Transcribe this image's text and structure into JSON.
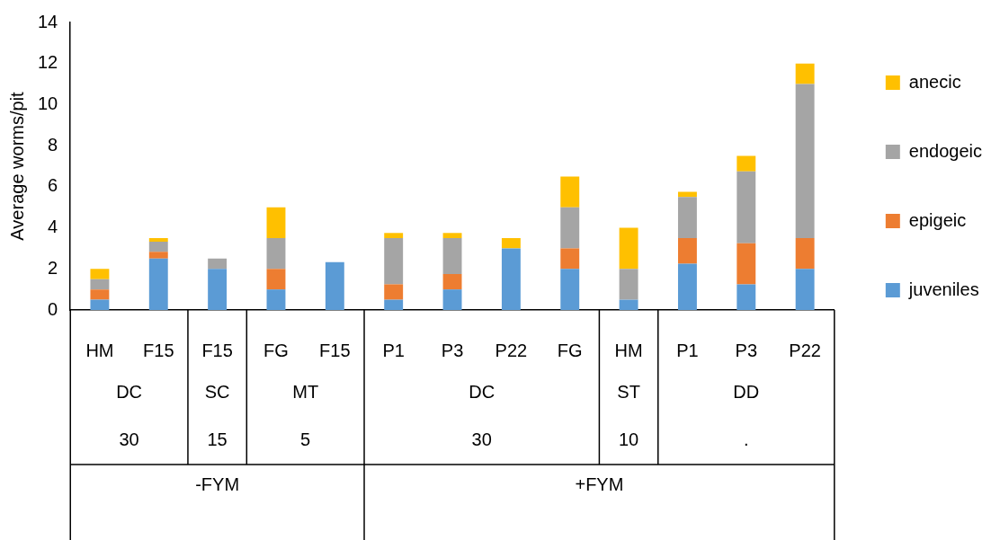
{
  "chart_data": {
    "type": "bar",
    "stacked": true,
    "ylabel": "Average worms/pit",
    "categories": [
      "HM",
      "F15",
      "F15",
      "FG",
      "F15",
      "P1",
      "P3",
      "P22",
      "FG",
      "HM",
      "P1",
      "P3",
      "P22"
    ],
    "annotations": [
      "DC",
      "SC",
      "MT",
      "DC",
      "ST",
      "DD",
      "30",
      "15",
      "5",
      "30",
      "10",
      ".",
      "-FYM",
      "+FYM"
    ],
    "series": [
      {
        "name": "juveniles",
        "color": "#5b9bd5",
        "values": [
          0.5,
          2.5,
          2,
          1,
          2.33,
          0.5,
          1,
          3,
          2,
          0.5,
          2.25,
          1.25,
          2
        ]
      },
      {
        "name": "epigeic",
        "color": "#ed7d31",
        "values": [
          0.5,
          0.33,
          null,
          1,
          null,
          0.75,
          0.75,
          null,
          1,
          null,
          1.25,
          2,
          1.5
        ]
      },
      {
        "name": "endogeic",
        "color": "#a5a5a5",
        "values": [
          0.5,
          0.5,
          0.5,
          1.5,
          null,
          2.25,
          1.75,
          null,
          2,
          1.5,
          2,
          3.5,
          7.5
        ]
      },
      {
        "name": "anecic",
        "color": "#ffc000",
        "values": [
          0.5,
          0.17,
          null,
          1.5,
          null,
          0.25,
          0.25,
          0.5,
          1.5,
          2,
          0.25,
          0.75,
          1
        ]
      }
    ],
    "ylim": [
      0,
      14
    ],
    "yticks": [
      0,
      2,
      4,
      6,
      8,
      10,
      12,
      14
    ],
    "legend": "right"
  }
}
